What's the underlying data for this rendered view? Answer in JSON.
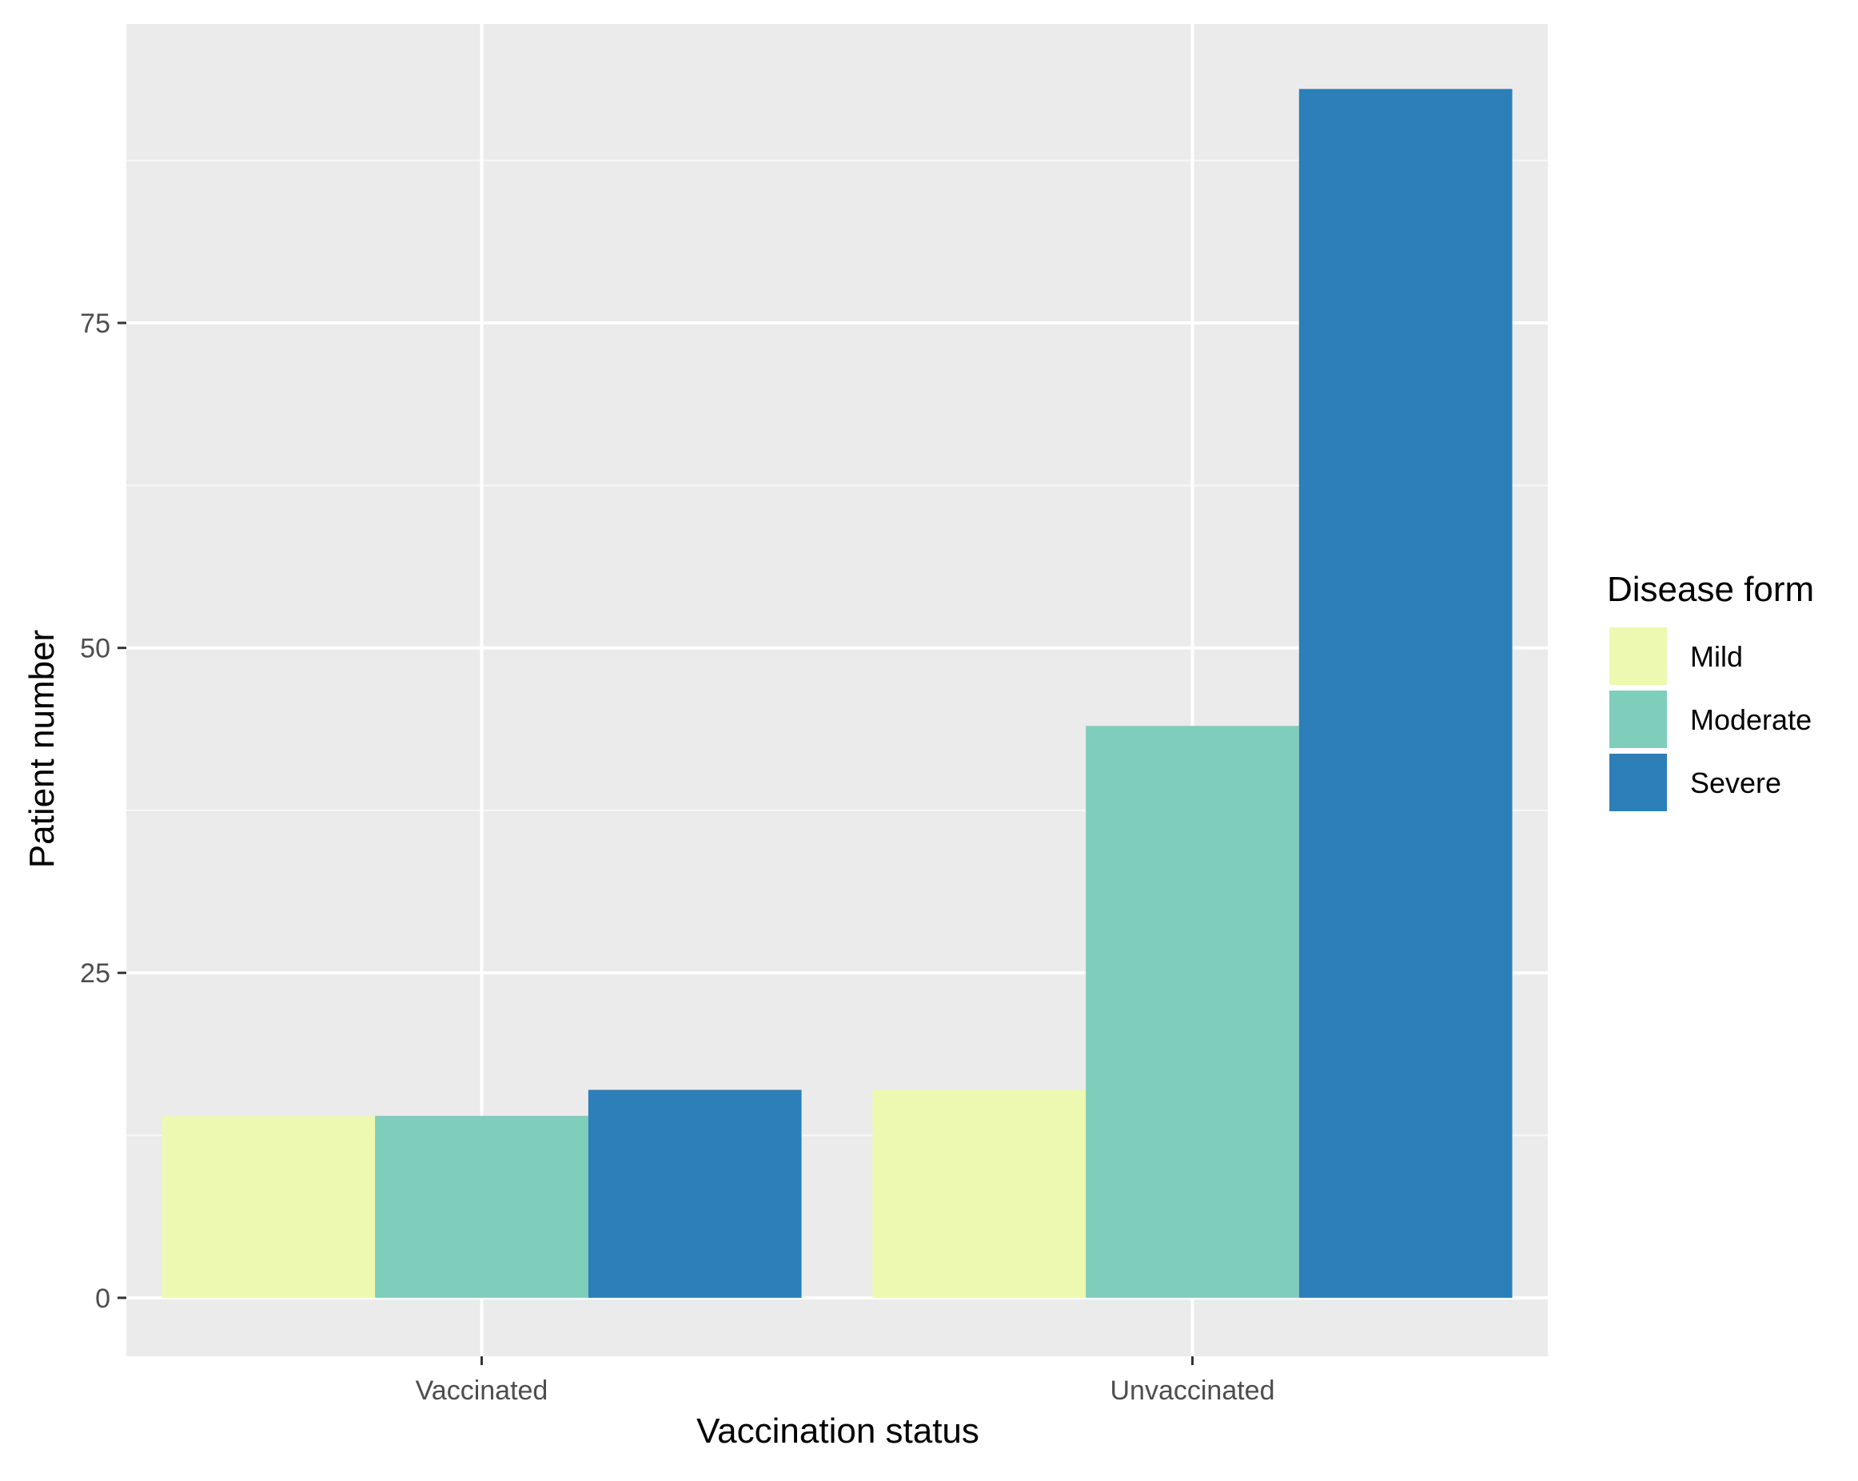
{
  "chart_data": {
    "type": "bar",
    "title": "",
    "xlabel": "Vaccination status",
    "ylabel": "Patient number",
    "categories": [
      "Vaccinated",
      "Unvaccinated"
    ],
    "series": [
      {
        "name": "Mild",
        "color": "#edf8b1",
        "values": [
          14,
          16
        ]
      },
      {
        "name": "Moderate",
        "color": "#7fcdbb",
        "values": [
          14,
          44
        ]
      },
      {
        "name": "Severe",
        "color": "#2c7fb8",
        "values": [
          16,
          93
        ]
      }
    ],
    "ylim": [
      -4.5,
      98
    ]
  },
  "axis": {
    "y_ticks": [
      0,
      25,
      50,
      75
    ],
    "grid": true
  },
  "legend": {
    "title": "Disease form",
    "placement": "right",
    "items": [
      "Mild",
      "Moderate",
      "Severe"
    ]
  },
  "colors": {
    "panel_background": "#ebebeb",
    "grid_major": "#ffffff",
    "tick_text": "#4d4d4d"
  }
}
